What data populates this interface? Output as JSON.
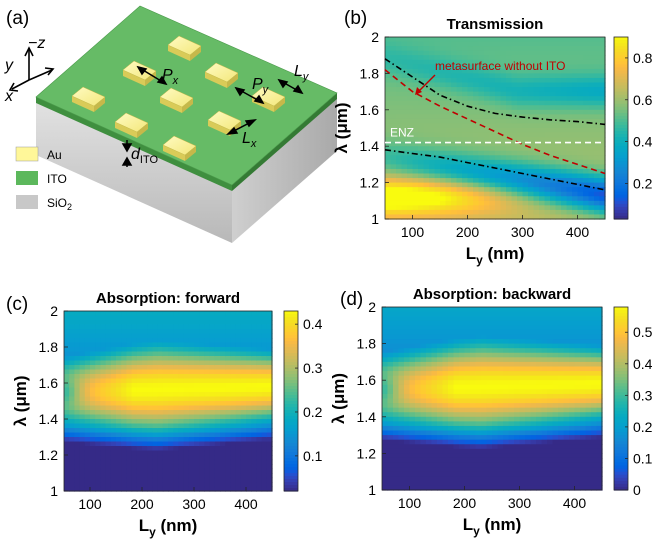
{
  "panel_labels": {
    "a": "(a)",
    "b": "(b)",
    "c": "(c)",
    "d": "(d)"
  },
  "schematic": {
    "legend": [
      {
        "label": "Au",
        "color": "#fff799"
      },
      {
        "label": "ITO",
        "color": "#5cb85c"
      },
      {
        "label": "SiO2",
        "color": "#c8c8c8"
      }
    ],
    "symbols": {
      "minus_z": "−z",
      "y": "y",
      "x": "x",
      "Px": "Px",
      "Py": "Py",
      "Ly": "Ly",
      "Lx": "Lx",
      "dITO": "dITO"
    }
  },
  "chart_data": [
    {
      "panel": "b",
      "type": "heatmap",
      "title": "Transmission",
      "xlabel": "Ly (nm)",
      "ylabel": "λ (μm)",
      "xlim": [
        50,
        450
      ],
      "ylim": [
        1.0,
        2.0
      ],
      "xticks": [
        100,
        200,
        300,
        400
      ],
      "yticks": [
        1,
        1.2,
        1.4,
        1.6,
        1.8,
        2
      ],
      "colorbar": {
        "min": 0.03,
        "max": 0.9,
        "ticks": [
          0.2,
          0.4,
          0.6,
          0.8
        ],
        "colormap": "parula"
      },
      "annotations": [
        {
          "text": "metasurface without ITO",
          "color": "#c00000"
        },
        {
          "text": "ENZ",
          "color": "#ffffff"
        }
      ],
      "lines": [
        {
          "style": "dash-dot",
          "color": "#000000",
          "x": [
            50,
            100,
            150,
            200,
            250,
            300,
            350,
            400,
            450
          ],
          "y": [
            1.88,
            1.78,
            1.68,
            1.62,
            1.58,
            1.56,
            1.545,
            1.535,
            1.52
          ]
        },
        {
          "style": "dash-dot",
          "color": "#000000",
          "x": [
            50,
            100,
            150,
            200,
            250,
            300,
            350,
            400,
            450
          ],
          "y": [
            1.38,
            1.36,
            1.34,
            1.31,
            1.28,
            1.25,
            1.22,
            1.19,
            1.16
          ]
        },
        {
          "style": "dashed",
          "color": "#c00000",
          "x": [
            50,
            100,
            150,
            200,
            250,
            300,
            350,
            400,
            450
          ],
          "y": [
            1.82,
            1.7,
            1.62,
            1.55,
            1.48,
            1.41,
            1.35,
            1.3,
            1.25
          ]
        },
        {
          "style": "dashed",
          "color": "#ffffff",
          "x": [
            50,
            450
          ],
          "y": [
            1.42,
            1.42
          ]
        }
      ]
    },
    {
      "panel": "c",
      "type": "heatmap",
      "title": "Absorption: forward",
      "xlabel": "Ly (nm)",
      "ylabel": "λ (μm)",
      "xlim": [
        50,
        450
      ],
      "ylim": [
        1.0,
        2.0
      ],
      "xticks": [
        100,
        200,
        300,
        400
      ],
      "yticks": [
        1,
        1.2,
        1.4,
        1.6,
        1.8,
        2
      ],
      "colorbar": {
        "min": 0.02,
        "max": 0.43,
        "ticks": [
          0.1,
          0.2,
          0.3,
          0.4
        ],
        "colormap": "parula"
      }
    },
    {
      "panel": "d",
      "type": "heatmap",
      "title": "Absorption: backward",
      "xlabel": "Ly (nm)",
      "ylabel": "λ (μm)",
      "xlim": [
        50,
        450
      ],
      "ylim": [
        1.0,
        2.0
      ],
      "xticks": [
        100,
        200,
        300,
        400
      ],
      "yticks": [
        1,
        1.2,
        1.4,
        1.6,
        1.8,
        2
      ],
      "colorbar": {
        "min": 0.0,
        "max": 0.58,
        "ticks": [
          0,
          0.1,
          0.2,
          0.3,
          0.4,
          0.5
        ],
        "colormap": "parula"
      }
    }
  ]
}
